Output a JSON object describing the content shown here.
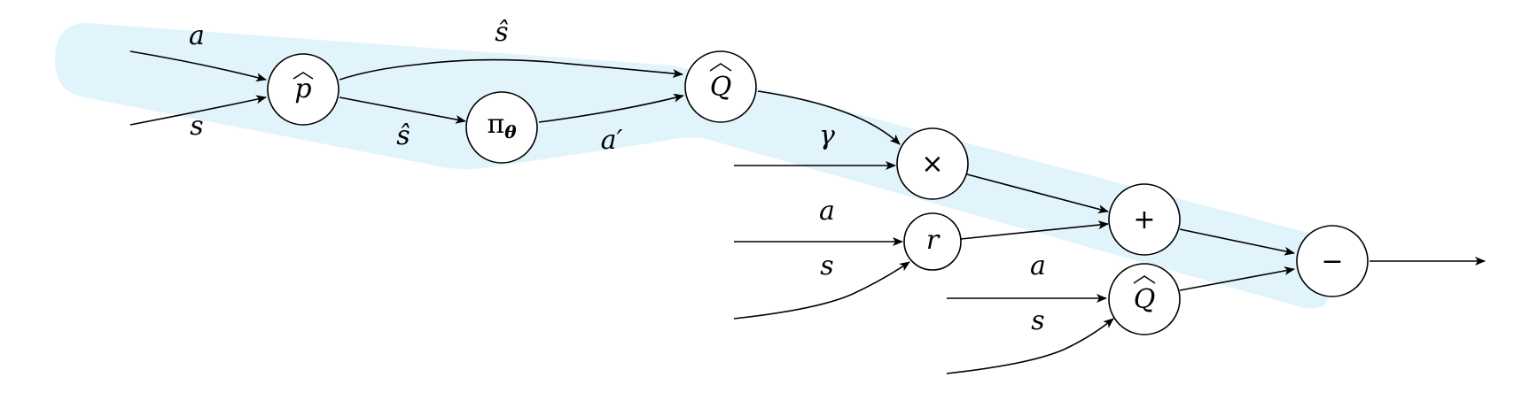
{
  "colors": {
    "highlight": "#e2f4fb",
    "stroke": "#000000"
  },
  "nodes": {
    "p_hat": "p",
    "policy": "π",
    "policy_param": "θ",
    "q_hat": "Q",
    "multiply": "×",
    "reward": "r",
    "plus": "+",
    "q_hat_2": "Q",
    "minus": "−"
  },
  "labels": {
    "a_top": "a",
    "s_hat_top": "ŝ",
    "s_left": "s",
    "s_hat_mid": "ŝ",
    "a_prime": "a′",
    "gamma": "γ",
    "a_reward": "a",
    "s_reward": "s",
    "a_q2": "a",
    "s_q2": "s"
  }
}
